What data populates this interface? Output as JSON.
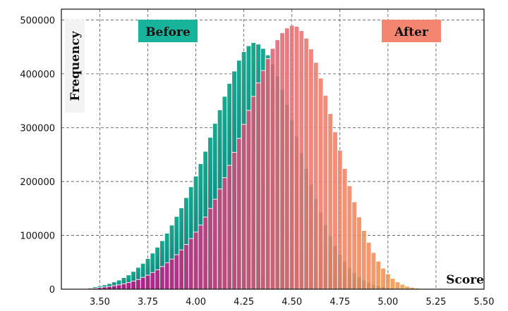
{
  "chart_data": {
    "type": "bar",
    "title": "",
    "xlabel": "Score",
    "ylabel": "Frequency",
    "xlim": [
      3.3,
      5.5
    ],
    "ylim": [
      0,
      520000
    ],
    "xticks": [
      "3.50",
      "3.75",
      "4.00",
      "4.25",
      "4.50",
      "4.75",
      "5.00",
      "5.25",
      "5.50"
    ],
    "xtick_values": [
      3.5,
      3.75,
      4.0,
      4.25,
      4.5,
      4.75,
      5.0,
      5.25,
      5.5
    ],
    "yticks": [
      "0",
      "100000",
      "200000",
      "300000",
      "400000",
      "500000"
    ],
    "ytick_values": [
      0,
      100000,
      200000,
      300000,
      400000,
      500000
    ],
    "grid": true,
    "bin_width": 0.025,
    "series": [
      {
        "name": "Before",
        "color": "#0f9e8c",
        "legend_color": "#17b39a",
        "x": [
          3.4,
          3.425,
          3.45,
          3.475,
          3.5,
          3.525,
          3.55,
          3.575,
          3.6,
          3.625,
          3.65,
          3.675,
          3.7,
          3.725,
          3.75,
          3.775,
          3.8,
          3.825,
          3.85,
          3.875,
          3.9,
          3.925,
          3.95,
          3.975,
          4.0,
          4.025,
          4.05,
          4.075,
          4.1,
          4.125,
          4.15,
          4.175,
          4.2,
          4.225,
          4.25,
          4.275,
          4.3,
          4.325,
          4.35,
          4.375,
          4.4,
          4.425,
          4.45,
          4.475,
          4.5,
          4.525,
          4.55,
          4.575,
          4.6,
          4.625,
          4.65,
          4.675,
          4.7,
          4.725,
          4.75,
          4.775,
          4.8,
          4.825,
          4.85,
          4.875,
          4.9,
          4.925,
          4.95,
          4.975,
          5.0,
          5.025,
          5.05,
          5.075,
          5.1,
          5.125,
          5.15,
          5.175,
          5.2,
          5.225,
          5.25
        ],
        "values": [
          1000,
          2000,
          3000,
          4500,
          6000,
          8000,
          10500,
          13500,
          17000,
          21500,
          26500,
          33000,
          40500,
          48000,
          57000,
          67000,
          78000,
          90000,
          104000,
          119000,
          135000,
          151000,
          170000,
          190000,
          210000,
          233000,
          256000,
          282000,
          308000,
          333000,
          358000,
          382000,
          405000,
          425000,
          441000,
          452000,
          458000,
          455000,
          447000,
          435000,
          418000,
          396000,
          371000,
          343000,
          314000,
          284000,
          253000,
          224000,
          195000,
          168000,
          143000,
          120000,
          99000,
          81000,
          65000,
          51500,
          40000,
          30500,
          23000,
          17000,
          12500,
          9000,
          6500,
          4500,
          3000,
          2000,
          1300,
          800,
          500,
          300,
          200,
          100,
          50,
          20,
          10
        ]
      },
      {
        "name": "After",
        "color": "#f07563",
        "legend_color": "#f48571",
        "x": [
          3.4,
          3.425,
          3.45,
          3.475,
          3.5,
          3.525,
          3.55,
          3.575,
          3.6,
          3.625,
          3.65,
          3.675,
          3.7,
          3.725,
          3.75,
          3.775,
          3.8,
          3.825,
          3.85,
          3.875,
          3.9,
          3.925,
          3.95,
          3.975,
          4.0,
          4.025,
          4.05,
          4.075,
          4.1,
          4.125,
          4.15,
          4.175,
          4.2,
          4.225,
          4.25,
          4.275,
          4.3,
          4.325,
          4.35,
          4.375,
          4.4,
          4.425,
          4.45,
          4.475,
          4.5,
          4.525,
          4.55,
          4.575,
          4.6,
          4.625,
          4.65,
          4.675,
          4.7,
          4.725,
          4.75,
          4.775,
          4.8,
          4.825,
          4.85,
          4.875,
          4.9,
          4.925,
          4.95,
          4.975,
          5.0,
          5.025,
          5.05,
          5.075,
          5.1,
          5.125,
          5.15,
          5.175,
          5.2,
          5.225,
          5.25
        ],
        "values": [
          500,
          1000,
          1500,
          2000,
          3000,
          4000,
          5000,
          6500,
          8000,
          10000,
          12500,
          15000,
          18000,
          22000,
          26000,
          31000,
          36000,
          42000,
          49000,
          56000,
          64000,
          73000,
          83000,
          94000,
          106000,
          119000,
          134000,
          150000,
          167000,
          186000,
          207000,
          230000,
          254000,
          280000,
          306000,
          332000,
          358000,
          383000,
          406000,
          428000,
          447000,
          463000,
          476000,
          485000,
          490000,
          488000,
          480000,
          466000,
          446000,
          421000,
          392000,
          360000,
          326000,
          292000,
          258000,
          224000,
          192000,
          162000,
          134000,
          109000,
          87000,
          68000,
          52000,
          39000,
          28500,
          20000,
          13500,
          9000,
          5500,
          3500,
          2000,
          1200,
          600,
          300,
          150
        ]
      }
    ]
  }
}
